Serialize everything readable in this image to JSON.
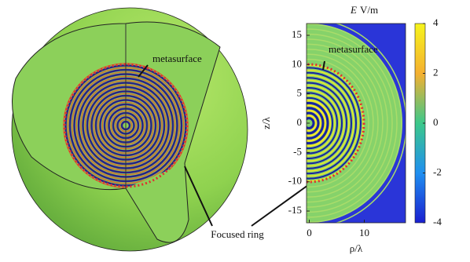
{
  "chart_data": {
    "type": "heatmap",
    "title": "E",
    "title_units": "V/m",
    "xlabel": "ρ/λ",
    "ylabel": "z/λ",
    "xlim": [
      -0.5,
      17.5
    ],
    "xticks": [
      0,
      10
    ],
    "ylim": [
      -17,
      17
    ],
    "yticks": [
      15,
      10,
      5,
      0,
      -5,
      -10,
      -15
    ],
    "colorbar": {
      "lim": [
        -4,
        4
      ],
      "ticks": [
        4,
        2,
        0,
        -2,
        -4
      ]
    },
    "annotations": [
      "metasurface",
      "metasurface",
      "Focused ring"
    ]
  }
}
